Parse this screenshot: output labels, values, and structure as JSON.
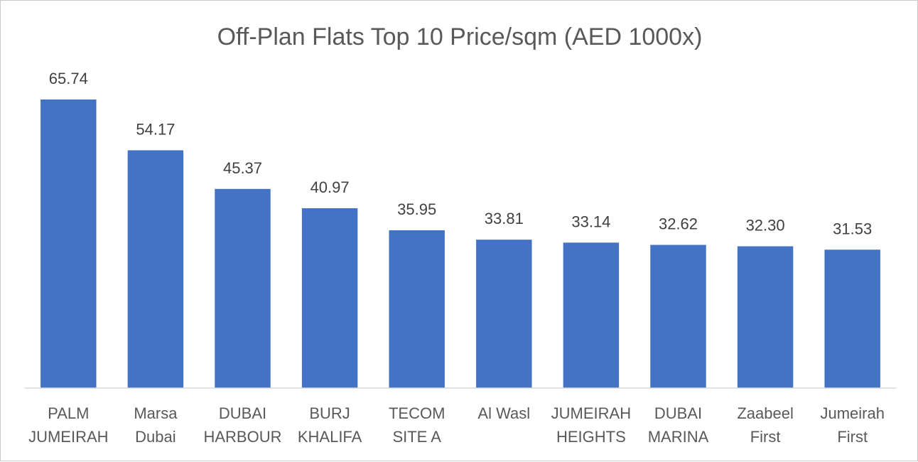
{
  "chart_data": {
    "type": "bar",
    "title": "Off-Plan Flats Top 10 Price/sqm (AED 1000x)",
    "xlabel": "",
    "ylabel": "",
    "ylim": [
      0,
      70
    ],
    "grid": false,
    "legend": "none",
    "bar_color": "#4472c4",
    "categories": [
      [
        "PALM",
        "JUMEIRAH"
      ],
      [
        "Marsa",
        "Dubai"
      ],
      [
        "DUBAI",
        "HARBOUR"
      ],
      [
        "BURJ",
        "KHALIFA"
      ],
      [
        "TECOM",
        "SITE A"
      ],
      [
        "Al Wasl"
      ],
      [
        "JUMEIRAH",
        "HEIGHTS"
      ],
      [
        "DUBAI",
        "MARINA"
      ],
      [
        "Zaabeel",
        "First"
      ],
      [
        "Jumeirah",
        "First"
      ]
    ],
    "values": [
      65.74,
      54.17,
      45.37,
      40.97,
      35.95,
      33.81,
      33.14,
      32.62,
      32.3,
      31.53
    ],
    "value_labels": [
      "65.74",
      "54.17",
      "45.37",
      "40.97",
      "35.95",
      "33.81",
      "33.14",
      "32.62",
      "32.30",
      "31.53"
    ]
  }
}
